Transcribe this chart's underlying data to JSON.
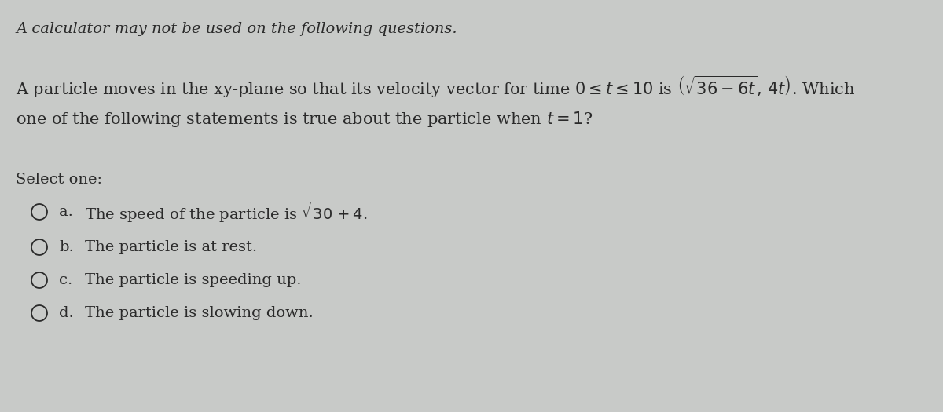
{
  "bg_color": "#c8cac8",
  "header_text": "A calculator may not be used on the following questions.",
  "question_line1": "A particle moves in the xy-plane so that its velocity vector for time $0 \\leq t \\leq 10$ is $\\left(\\sqrt{36-6t},\\, 4t\\right)$. Which",
  "question_line2": "one of the following statements is true about the particle when $t = 1$?",
  "select_one": "Select one:",
  "options": [
    {
      "label": "a.",
      "text": "The speed of the particle is $\\sqrt{30}+4$."
    },
    {
      "label": "b.",
      "text": "The particle is at rest."
    },
    {
      "label": "c.",
      "text": "The particle is speeding up."
    },
    {
      "label": "d.",
      "text": "The particle is slowing down."
    }
  ],
  "font_size_header": 14,
  "font_size_question": 15,
  "font_size_options": 14,
  "text_color": "#2a2a2a"
}
